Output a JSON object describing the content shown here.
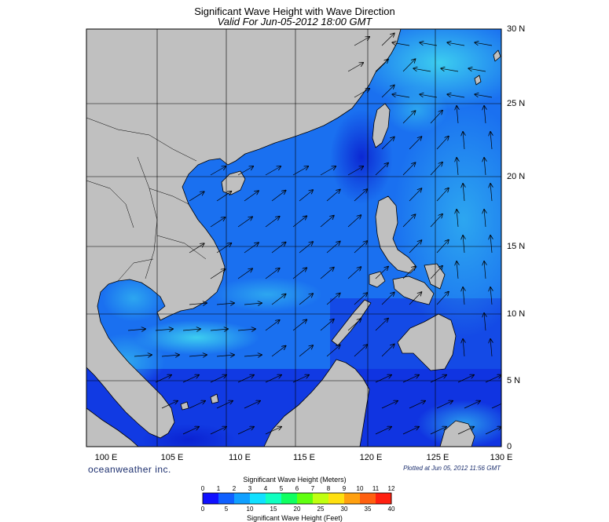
{
  "header": {
    "title": "Significant Wave Height with Wave Direction",
    "subtitle": "Valid For Jun-05-2012 18:00 GMT"
  },
  "map": {
    "lon_range": [
      100,
      130
    ],
    "lat_range": [
      0,
      30
    ],
    "lon_labels": [
      "100 E",
      "105 E",
      "110 E",
      "115 E",
      "120 E",
      "125 E",
      "130 E"
    ],
    "lat_labels": [
      "30 N",
      "25 N",
      "20 N",
      "15 N",
      "10 N",
      "5 N",
      "0"
    ],
    "colors": {
      "land": "#c0c0c0",
      "sea_dark": "#1030e0",
      "sea_mid": "#1a70f0",
      "sea_light": "#30b0f0",
      "sea_cyan": "#40d8f0",
      "grid": "#000000"
    }
  },
  "footer": {
    "brand": "oceanweather inc.",
    "plotted": "Plotted at Jun 05, 2012 11:56 GMT"
  },
  "scale": {
    "meters_title": "Significant Wave Height (Meters)",
    "feet_title": "Significant Wave Height (Feet)",
    "meters_ticks": [
      "0",
      "1",
      "2",
      "3",
      "4",
      "5",
      "6",
      "7",
      "8",
      "9",
      "10",
      "11",
      "12"
    ],
    "feet_ticks": [
      "0",
      "5",
      "10",
      "15",
      "20",
      "25",
      "30",
      "35",
      "40"
    ],
    "colors": [
      "#1010ff",
      "#1060ff",
      "#10a0ff",
      "#10e0ff",
      "#10ffc0",
      "#10ff60",
      "#60ff10",
      "#c0ff10",
      "#ffe010",
      "#ffa010",
      "#ff6010",
      "#ff2010"
    ]
  }
}
